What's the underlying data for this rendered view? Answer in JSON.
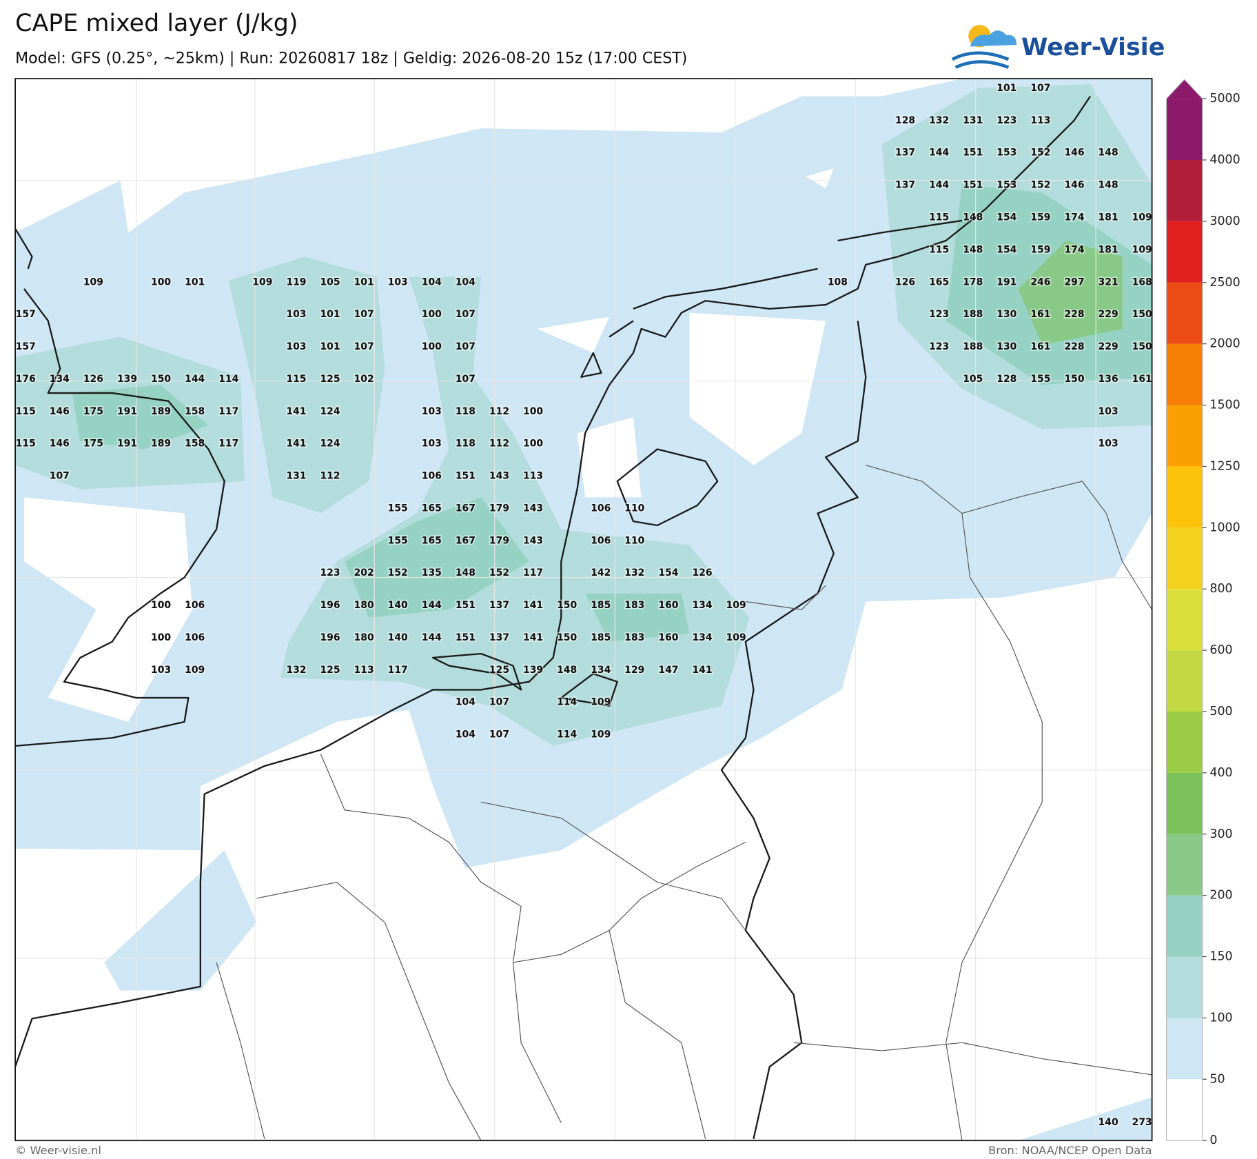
{
  "header": {
    "title": "CAPE mixed layer (J/kg)",
    "subtitle": "Model: GFS (0.25°, ~25km)  |  Run: 20260817 18z  |  Geldig: 2026-08-20 15z (17:00 CEST)"
  },
  "logo": {
    "text": "Weer-Visie"
  },
  "legend": {
    "ticks": [
      0,
      50,
      100,
      150,
      200,
      300,
      400,
      500,
      600,
      800,
      1000,
      1250,
      1500,
      2000,
      2500,
      3000,
      4000,
      5000
    ],
    "colors": [
      "#ffffff",
      "#cfe6f5",
      "#b3dcdc",
      "#96d2c4",
      "#88c988",
      "#7bc25a",
      "#9acc45",
      "#c2d944",
      "#dde03c",
      "#f2d21f",
      "#fcc30a",
      "#fb9f05",
      "#f77f07",
      "#ec4b13",
      "#e01f1f",
      "#b31f3a",
      "#8b1a6a"
    ]
  },
  "labels": [
    [
      null,
      null,
      null,
      null,
      null,
      null,
      null,
      null,
      null,
      null,
      null,
      null,
      null,
      null,
      null,
      null,
      null,
      null,
      null,
      null,
      null,
      null,
      null,
      null,
      null,
      null,
      null,
      null,
      null,
      101,
      107
    ],
    [
      null,
      null,
      null,
      null,
      null,
      null,
      null,
      null,
      null,
      null,
      null,
      null,
      null,
      null,
      null,
      null,
      null,
      null,
      null,
      null,
      null,
      null,
      null,
      null,
      null,
      null,
      128,
      132,
      131,
      123,
      113
    ],
    [
      null,
      null,
      null,
      null,
      null,
      null,
      null,
      null,
      null,
      null,
      null,
      null,
      null,
      null,
      null,
      null,
      null,
      null,
      null,
      null,
      null,
      null,
      null,
      null,
      null,
      null,
      137,
      144,
      151,
      153,
      152,
      146,
      148
    ],
    [
      null,
      null,
      null,
      null,
      null,
      null,
      null,
      null,
      null,
      null,
      null,
      null,
      null,
      null,
      null,
      null,
      null,
      null,
      null,
      null,
      null,
      null,
      null,
      null,
      null,
      null,
      137,
      144,
      151,
      153,
      152,
      146,
      148
    ],
    [
      null,
      null,
      null,
      null,
      null,
      null,
      null,
      null,
      null,
      null,
      null,
      null,
      null,
      null,
      null,
      null,
      null,
      null,
      null,
      null,
      null,
      null,
      null,
      null,
      null,
      null,
      null,
      115,
      148,
      154,
      159,
      174,
      181,
      109
    ],
    [
      null,
      null,
      null,
      null,
      null,
      null,
      null,
      null,
      null,
      null,
      null,
      null,
      null,
      null,
      null,
      null,
      null,
      null,
      null,
      null,
      null,
      null,
      null,
      null,
      null,
      null,
      null,
      115,
      148,
      154,
      159,
      174,
      181,
      109
    ],
    [
      null,
      null,
      109,
      null,
      100,
      101,
      null,
      109,
      119,
      105,
      101,
      103,
      104,
      104,
      null,
      null,
      null,
      null,
      null,
      null,
      null,
      null,
      null,
      null,
      108,
      null,
      126,
      165,
      178,
      191,
      246,
      297,
      321,
      168
    ],
    [
      157,
      null,
      null,
      null,
      null,
      null,
      null,
      null,
      103,
      101,
      107,
      null,
      100,
      107,
      null,
      null,
      null,
      null,
      null,
      null,
      null,
      null,
      null,
      null,
      null,
      null,
      null,
      123,
      188,
      130,
      161,
      228,
      229,
      150
    ],
    [
      157,
      null,
      null,
      null,
      null,
      null,
      null,
      null,
      103,
      101,
      107,
      null,
      100,
      107,
      null,
      null,
      null,
      null,
      null,
      null,
      null,
      null,
      null,
      null,
      null,
      null,
      null,
      123,
      188,
      130,
      161,
      228,
      229,
      150
    ],
    [
      176,
      134,
      126,
      139,
      150,
      144,
      114,
      null,
      115,
      125,
      102,
      null,
      null,
      107,
      null,
      null,
      null,
      null,
      null,
      null,
      null,
      null,
      null,
      null,
      null,
      null,
      null,
      null,
      105,
      128,
      155,
      150,
      136,
      161
    ],
    [
      115,
      146,
      175,
      191,
      189,
      158,
      117,
      null,
      141,
      124,
      null,
      null,
      103,
      118,
      112,
      100,
      null,
      null,
      null,
      null,
      null,
      null,
      null,
      null,
      null,
      null,
      null,
      null,
      null,
      null,
      null,
      null,
      103
    ],
    [
      115,
      146,
      175,
      191,
      189,
      158,
      117,
      null,
      141,
      124,
      null,
      null,
      103,
      118,
      112,
      100,
      null,
      null,
      null,
      null,
      null,
      null,
      null,
      null,
      null,
      null,
      null,
      null,
      null,
      null,
      null,
      null,
      103
    ],
    [
      null,
      107,
      null,
      null,
      null,
      null,
      null,
      null,
      131,
      112,
      null,
      null,
      106,
      151,
      143,
      113
    ],
    [
      null,
      null,
      null,
      null,
      null,
      null,
      null,
      null,
      null,
      null,
      null,
      155,
      165,
      167,
      179,
      143,
      null,
      106,
      110
    ],
    [
      null,
      null,
      null,
      null,
      null,
      null,
      null,
      null,
      null,
      null,
      null,
      155,
      165,
      167,
      179,
      143,
      null,
      106,
      110
    ],
    [
      null,
      null,
      null,
      null,
      null,
      null,
      null,
      null,
      null,
      123,
      202,
      152,
      135,
      148,
      152,
      117,
      null,
      142,
      132,
      154,
      126
    ],
    [
      null,
      null,
      null,
      null,
      100,
      106,
      null,
      null,
      null,
      196,
      180,
      140,
      144,
      151,
      137,
      141,
      150,
      185,
      183,
      160,
      134,
      109
    ],
    [
      null,
      null,
      null,
      null,
      100,
      106,
      null,
      null,
      null,
      196,
      180,
      140,
      144,
      151,
      137,
      141,
      150,
      185,
      183,
      160,
      134,
      109
    ],
    [
      null,
      null,
      null,
      null,
      103,
      109,
      null,
      null,
      132,
      125,
      113,
      117,
      null,
      null,
      125,
      139,
      148,
      134,
      129,
      147,
      141
    ],
    [
      null,
      null,
      null,
      null,
      null,
      null,
      null,
      null,
      null,
      null,
      null,
      null,
      null,
      104,
      107,
      null,
      114,
      109
    ],
    [
      null,
      null,
      null,
      null,
      null,
      null,
      null,
      null,
      null,
      null,
      null,
      null,
      null,
      104,
      107,
      null,
      114,
      109
    ],
    [],
    [],
    [],
    [],
    [],
    [],
    [],
    [],
    [],
    [],
    [],
    [
      null,
      null,
      null,
      null,
      null,
      null,
      null,
      null,
      null,
      null,
      null,
      null,
      null,
      null,
      null,
      null,
      null,
      null,
      null,
      null,
      null,
      null,
      null,
      null,
      null,
      null,
      null,
      null,
      null,
      null,
      null,
      null,
      140,
      273
    ]
  ],
  "footer": {
    "left": "© Weer-visie.nl",
    "right": "Bron: NOAA/NCEP Open Data"
  }
}
